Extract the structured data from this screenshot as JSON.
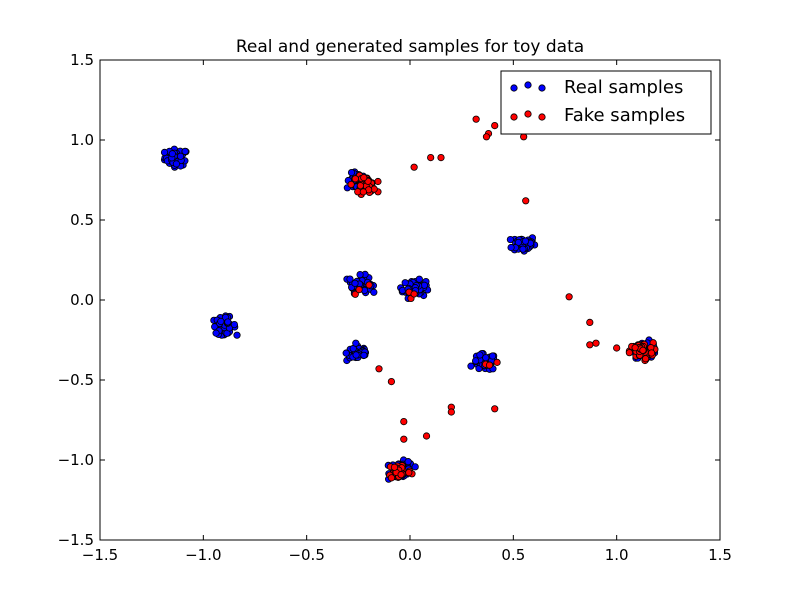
{
  "chart_data": {
    "type": "scatter",
    "title": "Real and generated samples for toy data",
    "xlabel": "",
    "ylabel": "",
    "xlim": [
      -1.5,
      1.5
    ],
    "ylim": [
      -1.5,
      1.5
    ],
    "xticks": [
      "−1.5",
      "−1.0",
      "−0.5",
      "0.0",
      "0.5",
      "1.0",
      "1.5"
    ],
    "yticks": [
      "1.5",
      "1.0",
      "0.5",
      "0.0",
      "−0.5",
      "−1.0",
      "−1.5"
    ],
    "grid": false,
    "legend_position": "top-right",
    "series": [
      {
        "name": "Real samples",
        "color": "#0000ff",
        "clusters": [
          {
            "x": -1.13,
            "y": 0.89,
            "count": 60
          },
          {
            "x": -0.25,
            "y": 0.74,
            "count": 50
          },
          {
            "x": 0.55,
            "y": 0.35,
            "count": 50
          },
          {
            "x": -0.24,
            "y": 0.1,
            "count": 50
          },
          {
            "x": 0.02,
            "y": 0.07,
            "count": 60
          },
          {
            "x": -0.9,
            "y": -0.16,
            "count": 55
          },
          {
            "x": -0.25,
            "y": -0.33,
            "count": 45
          },
          {
            "x": 0.36,
            "y": -0.39,
            "count": 50
          },
          {
            "x": -0.04,
            "y": -1.06,
            "count": 50
          },
          {
            "x": 1.14,
            "y": -0.31,
            "count": 50
          }
        ]
      },
      {
        "name": "Fake samples",
        "color": "#ff0000",
        "clusters": [
          {
            "x": -0.22,
            "y": 0.72,
            "count": 40
          },
          {
            "x": 1.12,
            "y": -0.32,
            "count": 60
          },
          {
            "x": -0.05,
            "y": -1.07,
            "count": 35
          },
          {
            "x": -0.23,
            "y": 0.07,
            "count": 3
          },
          {
            "x": 0.01,
            "y": 0.07,
            "count": 3
          },
          {
            "x": 0.38,
            "y": -0.41,
            "count": 4
          }
        ],
        "points": [
          {
            "x": 0.32,
            "y": 1.13
          },
          {
            "x": 0.41,
            "y": 1.09
          },
          {
            "x": 0.38,
            "y": 1.04
          },
          {
            "x": 0.37,
            "y": 1.02
          },
          {
            "x": 0.55,
            "y": 1.02
          },
          {
            "x": 0.02,
            "y": 0.83
          },
          {
            "x": 0.1,
            "y": 0.89
          },
          {
            "x": 0.15,
            "y": 0.89
          },
          {
            "x": 0.56,
            "y": 0.62
          },
          {
            "x": 0.77,
            "y": 0.02
          },
          {
            "x": 0.87,
            "y": -0.14
          },
          {
            "x": 0.87,
            "y": -0.28
          },
          {
            "x": 0.9,
            "y": -0.27
          },
          {
            "x": 1.0,
            "y": -0.3
          },
          {
            "x": -0.15,
            "y": -0.43
          },
          {
            "x": -0.09,
            "y": -0.51
          },
          {
            "x": 0.2,
            "y": -0.67
          },
          {
            "x": 0.2,
            "y": -0.7
          },
          {
            "x": 0.41,
            "y": -0.68
          },
          {
            "x": -0.03,
            "y": -0.76
          },
          {
            "x": 0.08,
            "y": -0.85
          },
          {
            "x": -0.03,
            "y": -0.87
          }
        ]
      }
    ]
  }
}
